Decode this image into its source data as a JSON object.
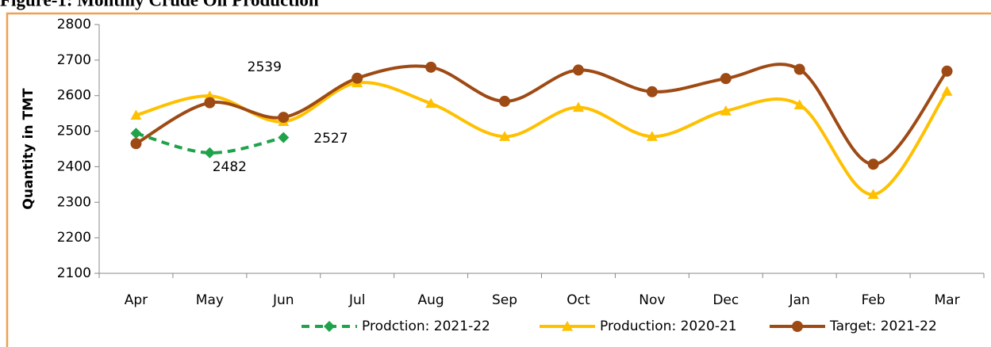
{
  "chart_data": {
    "type": "line",
    "title": "Figure-1: Monthly Crude Oil Production",
    "y_label": "Quantity in TMT",
    "categories": [
      "Apr",
      "May",
      "Jun",
      "Jul",
      "Aug",
      "Sep",
      "Oct",
      "Nov",
      "Dec",
      "Jan",
      "Feb",
      "Mar"
    ],
    "series": [
      {
        "name": "Prodction: 2021-22",
        "color": "#1fa34a",
        "dashed": true,
        "marker": "diamond",
        "values": [
          2494,
          2439,
          2482,
          null,
          null,
          null,
          null,
          null,
          null,
          null,
          null,
          null
        ]
      },
      {
        "name": "Production: 2020-21",
        "color": "#ffc000",
        "dashed": false,
        "marker": "triangle",
        "values": [
          2545,
          2599,
          2527,
          2636,
          2578,
          2485,
          2567,
          2485,
          2557,
          2574,
          2322,
          2612
        ]
      },
      {
        "name": "Target: 2021-22",
        "color": "#9e4a14",
        "dashed": false,
        "marker": "circle",
        "values": [
          2465,
          2580,
          2539,
          2649,
          2680,
          2584,
          2672,
          2611,
          2648,
          2674,
          2407,
          2669
        ]
      }
    ],
    "annotations": [
      "2539",
      "2527",
      "2482"
    ],
    "ylim": [
      2100,
      2800
    ],
    "yticks": [
      2100,
      2200,
      2300,
      2400,
      2500,
      2600,
      2700,
      2800
    ],
    "smooth": true,
    "legend": "bottom"
  }
}
